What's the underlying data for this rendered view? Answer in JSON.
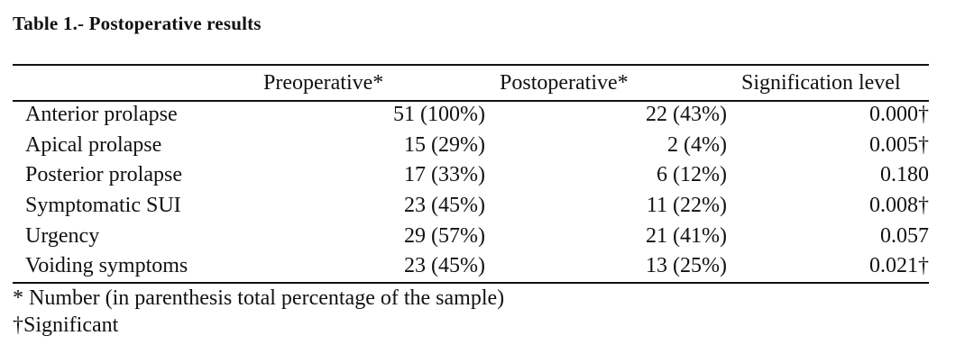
{
  "title": "Table 1.- Postoperative results",
  "headers": [
    "",
    "Preoperative*",
    "Postoperative*",
    "Signification level"
  ],
  "rows": [
    {
      "label": "Anterior prolapse",
      "pre": "51 (100%)",
      "post": "22 (43%)",
      "sig": "0.000†"
    },
    {
      "label": "Apical prolapse",
      "pre": "15 (29%)",
      "post": "2 (4%)",
      "sig": "0.005†"
    },
    {
      "label": "Posterior prolapse",
      "pre": "17 (33%)",
      "post": "6 (12%)",
      "sig": "0.180"
    },
    {
      "label": "Symptomatic SUI",
      "pre": "23 (45%)",
      "post": "11 (22%)",
      "sig": "0.008†"
    },
    {
      "label": "Urgency",
      "pre": "29 (57%)",
      "post": "21 (41%)",
      "sig": "0.057"
    },
    {
      "label": "Voiding symptoms",
      "pre": "23 (45%)",
      "post": "13 (25%)",
      "sig": "0.021†"
    }
  ],
  "footnotes": [
    "* Number (in parenthesis total percentage of the sample)",
    "†Significant"
  ]
}
